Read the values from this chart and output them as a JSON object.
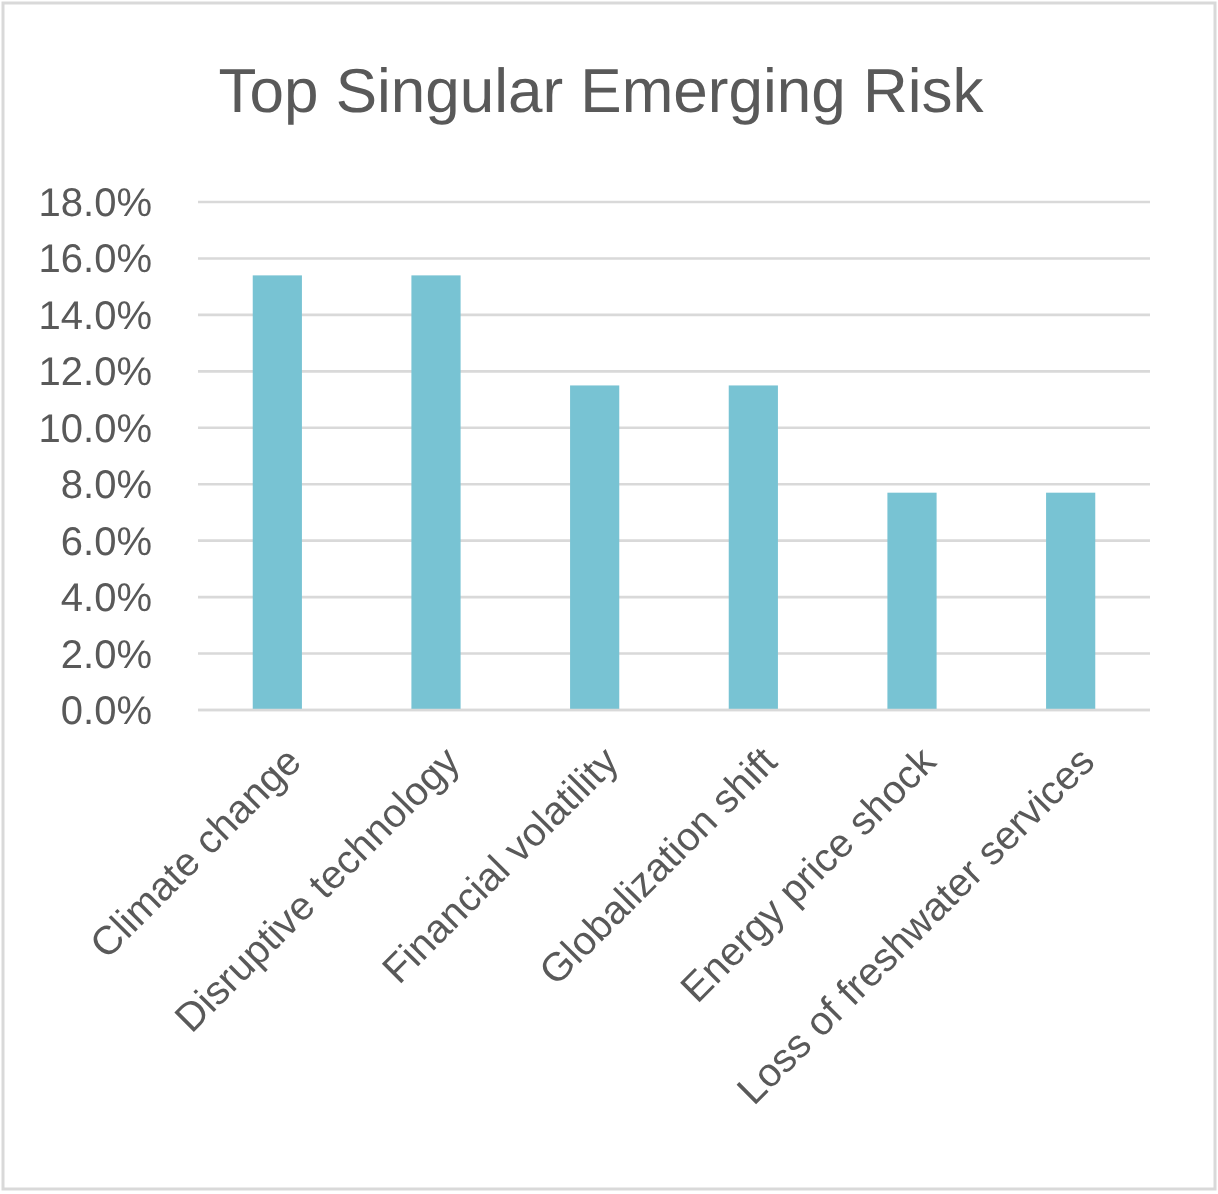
{
  "chart_data": {
    "type": "bar",
    "title": "Top Singular Emerging Risk",
    "categories": [
      "Climate change",
      "Disruptive technology",
      "Financial volatility",
      "Globalization shift",
      "Energy price shock",
      "Loss of freshwater services"
    ],
    "values": [
      15.4,
      15.4,
      11.5,
      11.5,
      7.7,
      7.7
    ],
    "color": "#78c3d3",
    "ylim": [
      0,
      18
    ],
    "yticks": [
      {
        "value": 0,
        "label": "0.0%"
      },
      {
        "value": 2,
        "label": "2.0%"
      },
      {
        "value": 4,
        "label": "4.0%"
      },
      {
        "value": 6,
        "label": "6.0%"
      },
      {
        "value": 8,
        "label": "8.0%"
      },
      {
        "value": 10,
        "label": "10.0%"
      },
      {
        "value": 12,
        "label": "12.0%"
      },
      {
        "value": 14,
        "label": "14.0%"
      },
      {
        "value": 16,
        "label": "16.0%"
      },
      {
        "value": 18,
        "label": "18.0%"
      }
    ],
    "grid": "y"
  }
}
